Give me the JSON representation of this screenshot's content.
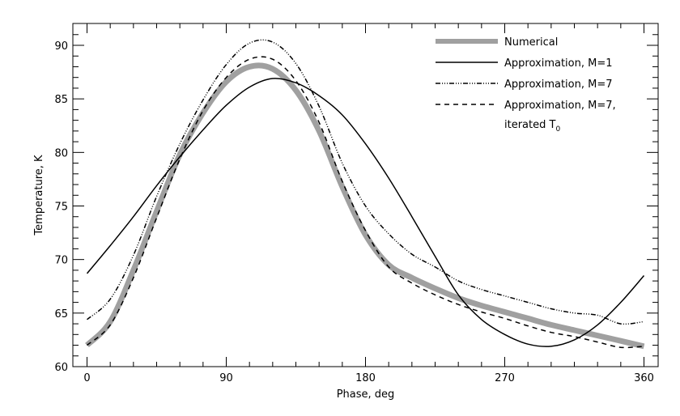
{
  "chart_data": {
    "type": "line",
    "title": "",
    "xlabel": "Phase, deg",
    "ylabel": "Temperature, K",
    "xlim": [
      -10,
      370
    ],
    "ylim": [
      59.8,
      92.0
    ],
    "xticks": [
      0,
      90,
      180,
      270,
      360
    ],
    "xtick_labels": [
      "0",
      "90",
      "180",
      "270",
      "360"
    ],
    "x_minor_step": 15,
    "yticks": [
      60,
      65,
      70,
      75,
      80,
      85,
      90
    ],
    "ytick_labels": [
      "60",
      "65",
      "70",
      "75",
      "80",
      "85",
      "90"
    ],
    "y_minor_step": 1,
    "grid": false,
    "legend_position": "top-right",
    "x": [
      0,
      15,
      30,
      45,
      60,
      75,
      90,
      105,
      120,
      135,
      150,
      165,
      180,
      195,
      210,
      225,
      240,
      255,
      270,
      285,
      300,
      315,
      330,
      345,
      360
    ],
    "series": [
      {
        "name": "Numerical",
        "style": "thick-gray",
        "color": "#a0a0a0",
        "values": [
          62.0,
          64.2,
          69.0,
          74.5,
          79.8,
          83.7,
          86.6,
          88.0,
          87.8,
          85.8,
          82.0,
          76.8,
          72.3,
          69.5,
          68.3,
          67.3,
          66.4,
          65.7,
          65.1,
          64.5,
          63.9,
          63.4,
          62.9,
          62.4,
          61.9
        ]
      },
      {
        "name": "Approximation, M=1",
        "style": "solid",
        "color": "#000000",
        "values": [
          68.7,
          71.3,
          74.0,
          76.9,
          79.6,
          82.1,
          84.4,
          86.1,
          86.9,
          86.5,
          85.3,
          83.5,
          80.8,
          77.6,
          74.0,
          70.3,
          66.7,
          64.4,
          63.0,
          62.1,
          61.9,
          62.5,
          63.9,
          66.0,
          68.5
        ]
      },
      {
        "name": "Approximation, M=7",
        "style": "dash-dot-dot",
        "color": "#000000",
        "values": [
          64.4,
          66.3,
          70.4,
          75.9,
          80.8,
          84.9,
          88.2,
          90.2,
          90.3,
          88.3,
          84.3,
          79.0,
          75.0,
          72.4,
          70.5,
          69.3,
          68.0,
          67.2,
          66.6,
          66.0,
          65.4,
          65.0,
          64.8,
          64.0,
          64.2
        ]
      },
      {
        "name": "Approximation, M=7,",
        "name_line2": "iterated T",
        "name_line2_subscript": "0",
        "style": "dashed",
        "color": "#000000",
        "values": [
          62.0,
          63.9,
          68.3,
          73.9,
          79.4,
          83.9,
          87.0,
          88.7,
          88.7,
          86.7,
          82.8,
          77.3,
          72.7,
          69.3,
          67.8,
          66.7,
          65.8,
          65.1,
          64.5,
          63.8,
          63.2,
          62.8,
          62.3,
          61.8,
          61.9
        ]
      }
    ]
  }
}
